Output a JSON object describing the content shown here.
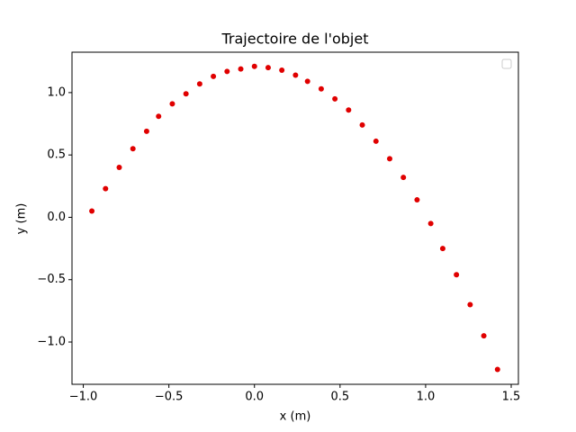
{
  "chart_data": {
    "type": "scatter",
    "title": "Trajectoire de l'objet",
    "x_label": "x (m)",
    "y_label": "y (m)",
    "series": [
      {
        "color": "#e00000",
        "x": [
          -0.95,
          -0.87,
          -0.79,
          -0.71,
          -0.63,
          -0.56,
          -0.48,
          -0.4,
          -0.32,
          -0.24,
          -0.16,
          -0.08,
          0.0,
          0.08,
          0.16,
          0.24,
          0.31,
          0.39,
          0.47,
          0.55,
          0.63,
          0.71,
          0.79,
          0.87,
          0.95,
          1.03,
          1.1,
          1.18,
          1.26,
          1.34,
          1.42
        ],
        "values": [
          0.05,
          0.23,
          0.4,
          0.55,
          0.69,
          0.81,
          0.91,
          0.99,
          1.07,
          1.13,
          1.17,
          1.19,
          1.21,
          1.2,
          1.18,
          1.14,
          1.09,
          1.03,
          0.95,
          0.86,
          0.74,
          0.61,
          0.47,
          0.32,
          0.14,
          -0.05,
          -0.25,
          -0.46,
          -0.7,
          -0.95,
          -1.22
        ]
      }
    ],
    "xlim": [
      -1.066,
      1.542
    ],
    "ylim": [
      -1.339,
      1.324
    ],
    "xticks": [
      {
        "value": -1.0,
        "label": "−1.0"
      },
      {
        "value": -0.5,
        "label": "−0.5"
      },
      {
        "value": 0.0,
        "label": "0.0"
      },
      0.5,
      {
        "value": 1.0,
        "label": "1.0"
      },
      1.5
    ],
    "yticks": [
      {
        "value": -1.0,
        "label": "−1.0"
      },
      {
        "value": -0.5,
        "label": "−0.5"
      },
      {
        "value": 0.0,
        "label": "0.0"
      },
      0.5,
      {
        "value": 1.0,
        "label": "1.0"
      }
    ],
    "grid": false,
    "legend": "upper right"
  }
}
